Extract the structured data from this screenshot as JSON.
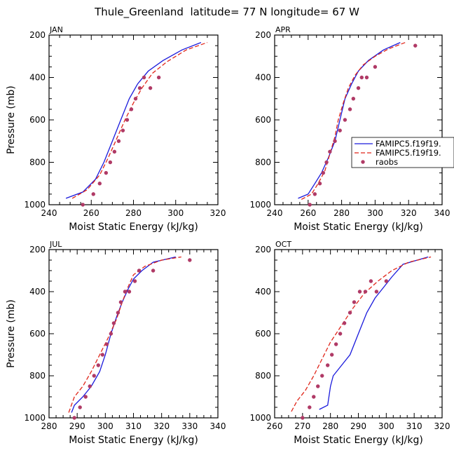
{
  "figure_title": "Thule_Greenland  latitude= 77 N longitude= 67 W",
  "colors": {
    "model1": "#1a1adc",
    "model2": "#e0261a",
    "obs": "#b03a66"
  },
  "legend": {
    "entries": [
      {
        "label": "FAMIPC5.f19f19.",
        "style": "solid",
        "color": "#1a1adc"
      },
      {
        "label": "FAMIPC5.f19f19.",
        "style": "dashed",
        "color": "#e0261a"
      },
      {
        "label": "raobs",
        "style": "dots",
        "color": "#b03a66"
      }
    ]
  },
  "chart_data": [
    {
      "type": "line",
      "title": "JAN",
      "xlabel": "Moist Static Energy (kJ/kg)",
      "ylabel": "Pressure (mb)",
      "xlim": [
        240,
        320
      ],
      "ylim": [
        1000,
        200
      ],
      "xticks": [
        240,
        260,
        280,
        300,
        320
      ],
      "yticks": [
        200,
        400,
        600,
        800,
        1000
      ],
      "series": [
        {
          "name": "FAMIPC5.f19f19.",
          "style": "solid",
          "x": [
            248,
            256,
            262,
            266,
            270,
            274,
            278,
            282,
            287,
            294,
            303,
            312
          ],
          "y": [
            970,
            940,
            880,
            800,
            700,
            600,
            500,
            430,
            370,
            320,
            270,
            235
          ]
        },
        {
          "name": "FAMIPC5.f19f19.",
          "style": "dashed",
          "x": [
            251,
            258,
            264,
            268,
            272,
            276,
            280,
            284,
            289,
            296,
            305,
            315
          ],
          "y": [
            970,
            930,
            860,
            780,
            690,
            600,
            520,
            450,
            380,
            325,
            270,
            235
          ]
        },
        {
          "name": "raobs",
          "style": "dots",
          "x": [
            256,
            261,
            264,
            267,
            269,
            271,
            273,
            275,
            277,
            279,
            281,
            283,
            285,
            288,
            292
          ],
          "y": [
            1000,
            950,
            900,
            850,
            800,
            750,
            700,
            650,
            600,
            550,
            500,
            450,
            400,
            450,
            400
          ]
        }
      ]
    },
    {
      "type": "line",
      "title": "APR",
      "xlabel": "Moist Static Energy (kJ/kg)",
      "ylabel": "Pressure (mb)",
      "xlim": [
        240,
        340
      ],
      "ylim": [
        1000,
        200
      ],
      "xticks": [
        240,
        260,
        280,
        300,
        320,
        340
      ],
      "yticks": [
        200,
        400,
        600,
        800,
        1000
      ],
      "series": [
        {
          "name": "FAMIPC5.f19f19.",
          "style": "solid",
          "x": [
            254,
            260,
            264,
            268,
            272,
            276,
            279,
            282,
            286,
            290,
            296,
            305,
            315
          ],
          "y": [
            970,
            950,
            900,
            850,
            780,
            700,
            600,
            500,
            430,
            370,
            320,
            270,
            235
          ]
        },
        {
          "name": "FAMIPC5.f19f19.",
          "style": "dashed",
          "x": [
            256,
            262,
            266,
            270,
            273,
            276,
            278,
            281,
            284,
            288,
            293,
            300,
            308,
            318
          ],
          "y": [
            975,
            950,
            900,
            840,
            760,
            680,
            600,
            520,
            450,
            390,
            340,
            300,
            265,
            235
          ]
        },
        {
          "name": "raobs",
          "style": "dots",
          "x": [
            261,
            264,
            267,
            269,
            271,
            273,
            276,
            279,
            282,
            285,
            287,
            290,
            292,
            295,
            300,
            324
          ],
          "y": [
            1000,
            950,
            900,
            850,
            800,
            750,
            700,
            650,
            600,
            550,
            500,
            450,
            400,
            400,
            350,
            250
          ]
        }
      ]
    },
    {
      "type": "line",
      "title": "JUL",
      "xlabel": "Moist Static Energy (kJ/kg)",
      "ylabel": "Pressure (mb)",
      "xlim": [
        280,
        340
      ],
      "ylim": [
        1000,
        200
      ],
      "xticks": [
        280,
        290,
        300,
        310,
        320,
        330,
        340
      ],
      "yticks": [
        200,
        400,
        600,
        800,
        1000
      ],
      "series": [
        {
          "name": "FAMIPC5.f19f19.",
          "style": "solid",
          "x": [
            288,
            289,
            292,
            295,
            298,
            300,
            302,
            304,
            306,
            308,
            310,
            313,
            317,
            325
          ],
          "y": [
            975,
            940,
            900,
            850,
            780,
            700,
            600,
            520,
            450,
            390,
            340,
            300,
            260,
            235
          ]
        },
        {
          "name": "FAMIPC5.f19f19.",
          "style": "dashed",
          "x": [
            287,
            289,
            292,
            295,
            298,
            301,
            304,
            306,
            308,
            310,
            314,
            320,
            327
          ],
          "y": [
            975,
            900,
            850,
            780,
            700,
            620,
            530,
            450,
            380,
            320,
            280,
            250,
            235
          ]
        },
        {
          "name": "raobs",
          "style": "dots",
          "x": [
            289,
            291,
            293,
            294.5,
            296,
            297.5,
            299,
            300.5,
            302,
            303,
            304.5,
            305.5,
            307,
            308.5,
            310.5,
            312,
            317,
            330
          ],
          "y": [
            1000,
            950,
            900,
            850,
            800,
            750,
            700,
            650,
            600,
            550,
            500,
            450,
            400,
            400,
            350,
            300,
            300,
            250
          ]
        }
      ]
    },
    {
      "type": "line",
      "title": "OCT",
      "xlabel": "Moist Static Energy (kJ/kg)",
      "ylabel": "Pressure (mb)",
      "xlim": [
        260,
        320
      ],
      "ylim": [
        1000,
        200
      ],
      "xticks": [
        260,
        270,
        280,
        290,
        300,
        310,
        320
      ],
      "yticks": [
        200,
        400,
        600,
        800,
        1000
      ],
      "series": [
        {
          "name": "FAMIPC5.f19f19.",
          "style": "solid",
          "x": [
            276,
            279,
            280,
            281,
            284,
            287,
            290,
            293,
            296,
            299,
            302,
            306,
            315
          ],
          "y": [
            960,
            940,
            850,
            800,
            750,
            700,
            600,
            500,
            430,
            380,
            330,
            270,
            235
          ]
        },
        {
          "name": "FAMIPC5.f19f19.",
          "style": "dashed",
          "x": [
            266,
            268,
            271,
            274,
            277,
            280,
            284,
            288,
            292,
            297,
            302,
            308,
            316
          ],
          "y": [
            970,
            920,
            870,
            800,
            720,
            640,
            560,
            480,
            410,
            350,
            300,
            260,
            235
          ]
        },
        {
          "name": "raobs",
          "style": "dots",
          "x": [
            270,
            272.5,
            274,
            275.5,
            277,
            279,
            280.5,
            282,
            283.5,
            285,
            287,
            288.5,
            290.5,
            292.5,
            294.5,
            296.5,
            300
          ],
          "y": [
            1000,
            950,
            900,
            850,
            800,
            750,
            700,
            650,
            600,
            550,
            500,
            450,
            400,
            400,
            350,
            400,
            350
          ]
        }
      ]
    }
  ]
}
